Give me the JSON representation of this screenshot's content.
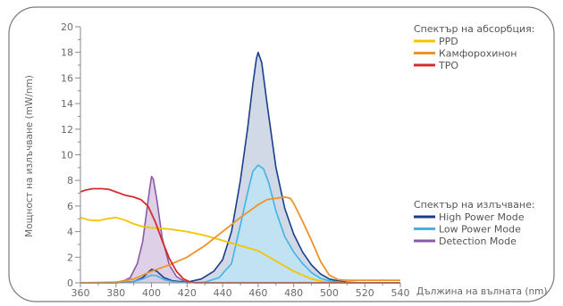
{
  "chart_data": {
    "type": "line",
    "ylabel": "Мощност на излъчване (mW/nm)",
    "xlabel": "Дължина на вълната (nm)",
    "xlim": [
      360,
      540
    ],
    "ylim": [
      0,
      20
    ],
    "x_ticks": [
      360,
      380,
      400,
      420,
      440,
      460,
      480,
      500,
      520,
      540
    ],
    "y_ticks": [
      0,
      2,
      4,
      6,
      8,
      10,
      12,
      14,
      16,
      18,
      20
    ],
    "grid": false,
    "legends": [
      {
        "title": "Спектър на абсорбция:",
        "entries": [
          {
            "label": "PPD",
            "color": "#f5c400"
          },
          {
            "label": "Камфорохинон",
            "color": "#f0922a"
          },
          {
            "label": "TPO",
            "color": "#d42c2c"
          }
        ]
      },
      {
        "title": "Спектър на излъчване:",
        "entries": [
          {
            "label": "High Power Mode",
            "color": "#1a3e8c"
          },
          {
            "label": "Low Power Mode",
            "color": "#3fb4e5"
          },
          {
            "label": "Detection Mode",
            "color": "#8a5aa8"
          }
        ]
      }
    ],
    "series": [
      {
        "name": "High Power Mode",
        "group": "emission",
        "color": "#1a3e8c",
        "fill": "#c9d2e3",
        "x": [
          360,
          380,
          390,
          395,
          398,
          400,
          403,
          407,
          412,
          420,
          428,
          435,
          440,
          445,
          450,
          454,
          457,
          459,
          460,
          462,
          465,
          470,
          475,
          480,
          485,
          490,
          495,
          500,
          505,
          510,
          520,
          540
        ],
        "y": [
          0.0,
          0.0,
          0.1,
          0.4,
          0.8,
          1.05,
          0.9,
          0.4,
          0.15,
          0.05,
          0.3,
          0.9,
          1.8,
          4.0,
          8.0,
          12.0,
          15.5,
          17.5,
          18.0,
          17.2,
          14.0,
          9.0,
          5.8,
          3.8,
          2.4,
          1.4,
          0.7,
          0.3,
          0.15,
          0.05,
          0.0,
          0.0
        ]
      },
      {
        "name": "Low Power Mode",
        "group": "emission",
        "color": "#3fb4e5",
        "fill": "#bde3f5",
        "x": [
          360,
          380,
          390,
          395,
          400,
          403,
          407,
          412,
          420,
          430,
          438,
          445,
          450,
          454,
          457,
          460,
          463,
          466,
          470,
          475,
          480,
          485,
          490,
          495,
          500,
          510,
          540
        ],
        "y": [
          0.0,
          0.0,
          0.1,
          0.3,
          0.6,
          0.55,
          0.25,
          0.1,
          0.0,
          0.05,
          0.4,
          1.5,
          4.5,
          7.0,
          8.7,
          9.2,
          8.9,
          7.8,
          5.6,
          3.6,
          2.4,
          1.5,
          0.8,
          0.35,
          0.15,
          0.0,
          0.0
        ]
      },
      {
        "name": "Detection Mode",
        "group": "emission",
        "color": "#8a5aa8",
        "fill": "#d8c9e3",
        "x": [
          382,
          388,
          392,
          395,
          397,
          399,
          400,
          401,
          403,
          406,
          410,
          414,
          418,
          422,
          425
        ],
        "y": [
          0.0,
          0.4,
          1.5,
          3.2,
          5.3,
          7.4,
          8.3,
          8.1,
          6.5,
          3.5,
          1.4,
          0.5,
          0.15,
          0.03,
          0.0
        ]
      },
      {
        "name": "PPD",
        "group": "absorption",
        "color": "#f5c400",
        "x": [
          360,
          365,
          370,
          375,
          380,
          385,
          390,
          395,
          400,
          410,
          420,
          430,
          440,
          450,
          460,
          470,
          480,
          490,
          500,
          510,
          520,
          540
        ],
        "y": [
          5.1,
          4.9,
          4.85,
          5.0,
          5.1,
          4.9,
          4.6,
          4.4,
          4.3,
          4.2,
          4.0,
          3.7,
          3.3,
          2.9,
          2.5,
          1.7,
          0.9,
          0.3,
          0.0,
          0.0,
          0.0,
          0.0
        ]
      },
      {
        "name": "Камфорохинон",
        "group": "absorption",
        "color": "#f0922a",
        "x": [
          360,
          380,
          390,
          395,
          400,
          410,
          420,
          430,
          440,
          450,
          460,
          465,
          470,
          475,
          478,
          480,
          485,
          490,
          495,
          500,
          505,
          510,
          520,
          540
        ],
        "y": [
          0.0,
          0.05,
          0.3,
          0.6,
          0.9,
          1.4,
          2.0,
          2.9,
          4.0,
          5.1,
          6.1,
          6.5,
          6.6,
          6.7,
          6.6,
          6.2,
          4.8,
          3.3,
          1.7,
          0.6,
          0.25,
          0.2,
          0.2,
          0.2
        ]
      },
      {
        "name": "TPO",
        "group": "absorption",
        "color": "#d42c2c",
        "x": [
          360,
          363,
          367,
          372,
          376,
          380,
          385,
          390,
          394,
          398,
          402,
          406,
          410,
          414,
          418,
          422,
          425,
          430,
          440,
          540
        ],
        "y": [
          7.1,
          7.25,
          7.35,
          7.35,
          7.3,
          7.1,
          6.85,
          6.7,
          6.5,
          6.0,
          4.8,
          3.3,
          1.9,
          0.9,
          0.3,
          0.05,
          0.0,
          0.0,
          0.0,
          0.0
        ]
      }
    ]
  }
}
